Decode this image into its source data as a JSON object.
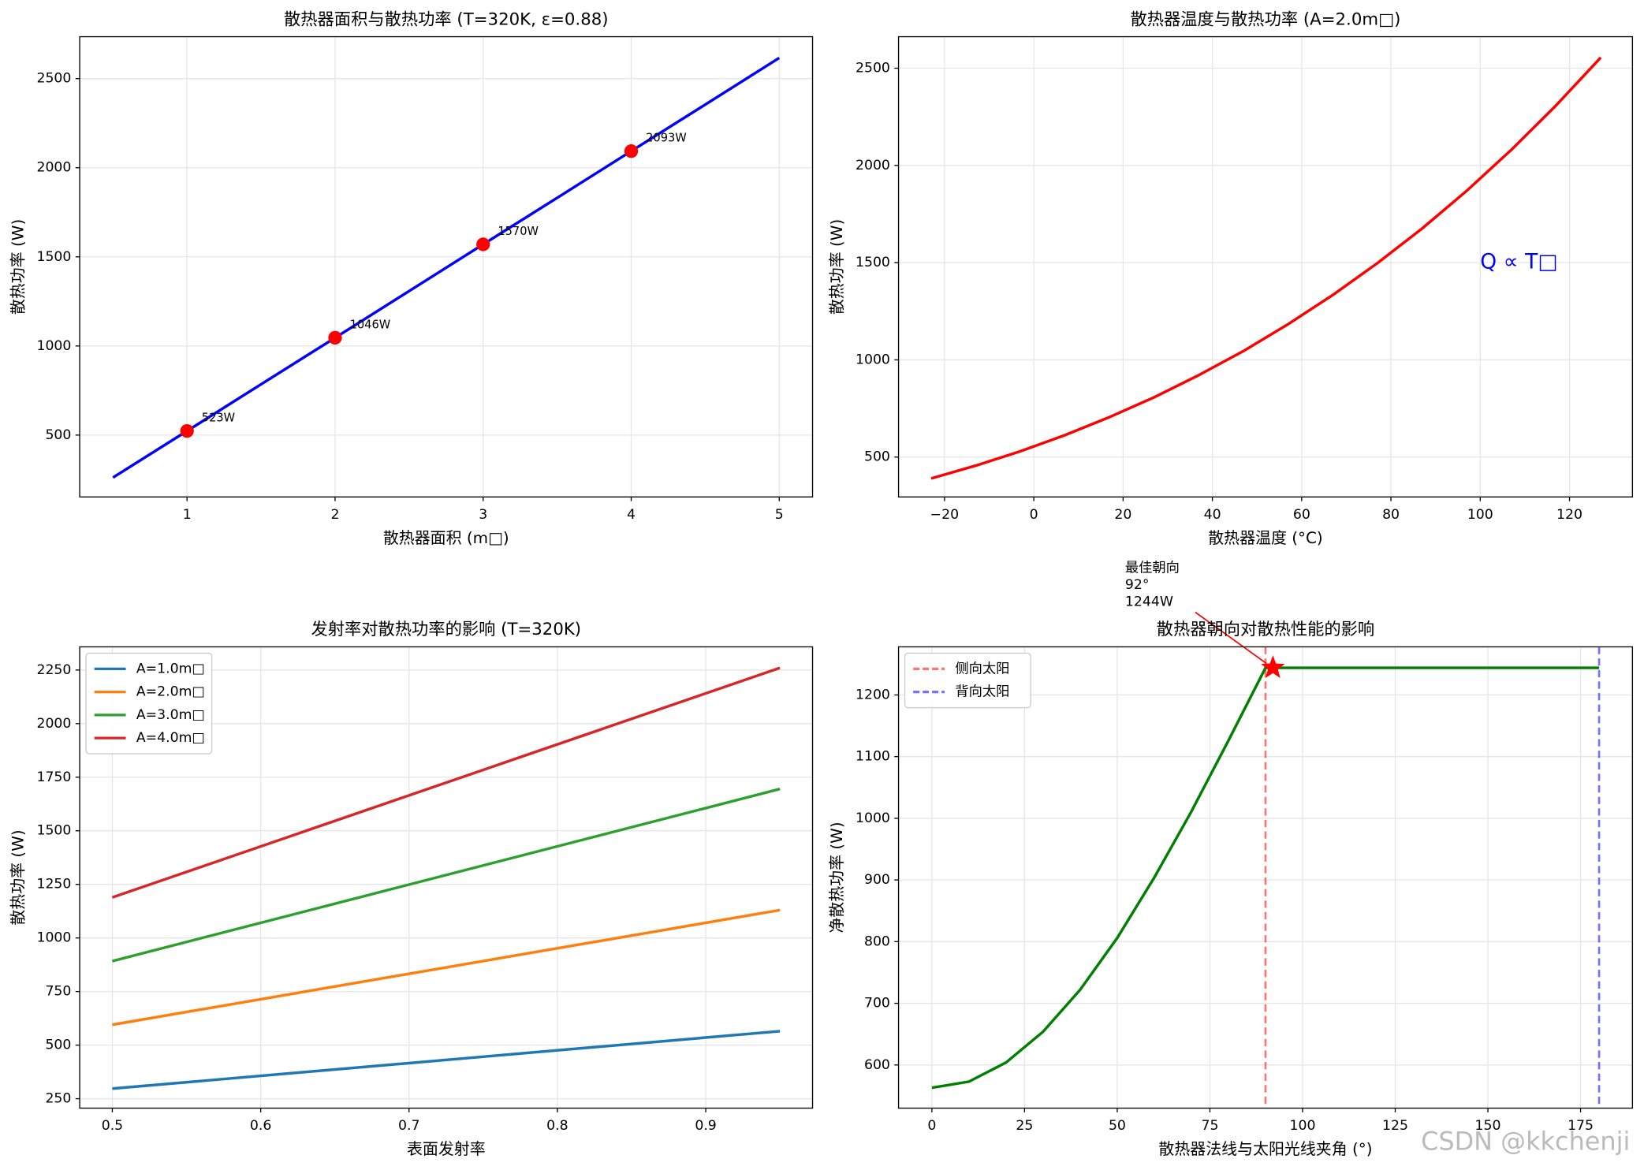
{
  "chart_data": [
    {
      "type": "line",
      "title": "散热器面积与散热功率 (T=320K, ε=0.88)",
      "xlabel": "散热器面积 (m□)",
      "ylabel": "散热功率 (W)",
      "x": [
        0.5,
        1,
        1.5,
        2,
        2.5,
        3,
        3.5,
        4,
        4.5,
        5
      ],
      "series": [
        {
          "color": "#0000ff",
          "values": [
            262,
            523,
            785,
            1046,
            1308,
            1570,
            1831,
            2093,
            2354,
            2616
          ]
        }
      ],
      "points": {
        "color": "#ff0000",
        "x": [
          1,
          2,
          3,
          4
        ],
        "values": [
          523,
          1046,
          1570,
          2093
        ],
        "value_labels": [
          "523W",
          "1046W",
          "1570W",
          "2093W"
        ]
      },
      "xlim": [
        0.275,
        5.225
      ],
      "ylim": [
        153,
        2735
      ],
      "xticks": [
        1,
        2,
        3,
        4,
        5
      ],
      "yticks": [
        500,
        1000,
        1500,
        2000,
        2500
      ],
      "grid": true
    },
    {
      "type": "line",
      "title": "散热器温度与散热功率 (A=2.0m□)",
      "xlabel": "散热器温度 (°C)",
      "ylabel": "散热功率 (W)",
      "x": [
        -23,
        -13,
        -3,
        7,
        17,
        27,
        37,
        47,
        57,
        67,
        77,
        87,
        97,
        107,
        117,
        127
      ],
      "series": [
        {
          "color": "#ff0000",
          "values": [
            390,
            456,
            530,
            613,
            706,
            808,
            922,
            1046,
            1184,
            1334,
            1498,
            1676,
            1870,
            2081,
            2309,
            2555
          ]
        }
      ],
      "annotation": {
        "text": "Q ∝ T□",
        "x": 100,
        "y": 1500,
        "color": "#0000ff"
      },
      "xlim": [
        -30.3,
        134.1
      ],
      "ylim": [
        295,
        2662
      ],
      "xticks": [
        {
          "value": -20,
          "label": "−20"
        },
        0,
        20,
        40,
        60,
        80,
        100,
        120
      ],
      "yticks": [
        500,
        1000,
        1500,
        2000,
        2500
      ],
      "grid": true
    },
    {
      "type": "line",
      "title": "发射率对散热功率的影响 (T=320K)",
      "xlabel": "表面发射率",
      "ylabel": "散热功率 (W)",
      "x": [
        0.5,
        0.95
      ],
      "series": [
        {
          "name": "A=1.0m□",
          "color": "#1f77b4",
          "values": [
            297,
            565
          ]
        },
        {
          "name": "A=2.0m□",
          "color": "#ff7f0e",
          "values": [
            595,
            1130
          ]
        },
        {
          "name": "A=3.0m□",
          "color": "#2ca02c",
          "values": [
            892,
            1695
          ]
        },
        {
          "name": "A=4.0m□",
          "color": "#d62728",
          "values": [
            1189,
            2260
          ]
        }
      ],
      "legend": "upper left",
      "xlim": [
        0.478,
        0.972
      ],
      "ylim": [
        206,
        2358
      ],
      "xticks": [
        0.5,
        0.6,
        0.7,
        0.8,
        0.9
      ],
      "yticks": [
        250,
        500,
        750,
        1000,
        1250,
        1500,
        1750,
        2000,
        2250
      ],
      "grid": true
    },
    {
      "type": "line",
      "title": "散热器朝向对散热性能的影响",
      "xlabel": "散热器法线与太阳光线夹角 (°)",
      "ylabel": "净散热功率 (W)",
      "x": [
        0,
        10,
        20,
        30,
        40,
        50,
        60,
        70,
        80,
        90,
        180
      ],
      "series": [
        {
          "color": "#008000",
          "values": [
            563,
            573,
            604,
            654,
            722,
            806,
            904,
            1011,
            1126,
            1244,
            1244
          ]
        }
      ],
      "vlines": [
        {
          "name": "侧向太阳",
          "color": "#ff0000",
          "x": 90
        },
        {
          "name": "背向太阳",
          "color": "#0000ff",
          "x": 180
        }
      ],
      "highlight": {
        "x": 92,
        "y": 1244,
        "color": "#ff0000",
        "label_lines": [
          "最佳朝向",
          "92°",
          "1244W"
        ]
      },
      "legend": "upper left",
      "xlim": [
        -9,
        189
      ],
      "ylim": [
        530,
        1278
      ],
      "xticks": [
        0,
        25,
        50,
        75,
        100,
        125,
        150,
        175
      ],
      "yticks": [
        600,
        700,
        800,
        900,
        1000,
        1100,
        1200
      ],
      "grid": true
    }
  ],
  "watermark": "CSDN @kkchenji"
}
